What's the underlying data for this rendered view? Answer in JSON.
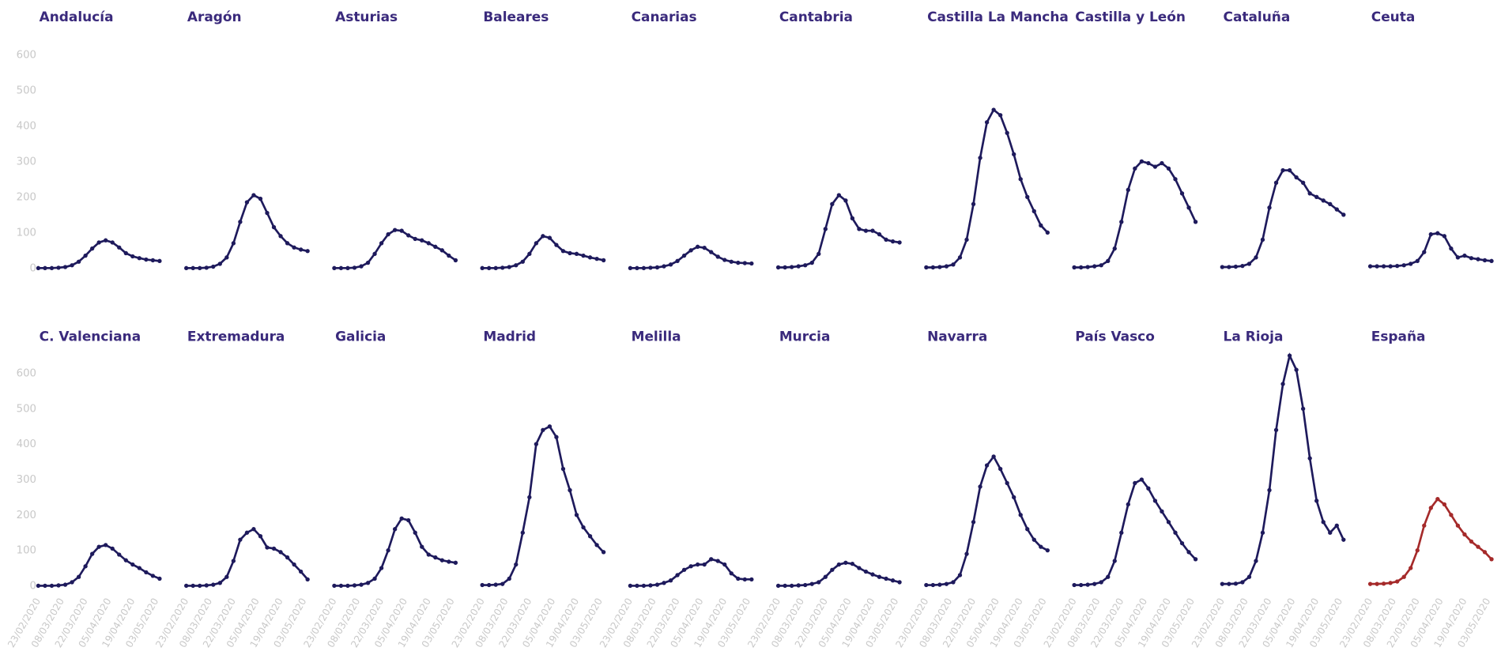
{
  "chart_data": [
    {
      "type": "line",
      "title": "Andalucía",
      "color": "#1e1a5c",
      "xlim": [
        "23/02/2020",
        "08/05/2020"
      ],
      "ylim": [
        0,
        600
      ],
      "yticks": [
        0,
        100,
        200,
        300,
        400,
        500,
        600
      ],
      "x": [
        "23/02/2020",
        "27/02/2020",
        "02/03/2020",
        "06/03/2020",
        "10/03/2020",
        "14/03/2020",
        "18/03/2020",
        "22/03/2020",
        "26/03/2020",
        "30/03/2020",
        "03/04/2020",
        "07/04/2020",
        "11/04/2020",
        "15/04/2020",
        "19/04/2020",
        "23/04/2020",
        "27/04/2020",
        "01/05/2020",
        "05/05/2020"
      ],
      "values": [
        0,
        0,
        0,
        1,
        3,
        8,
        18,
        35,
        55,
        72,
        78,
        72,
        58,
        42,
        33,
        28,
        24,
        22,
        20
      ]
    },
    {
      "type": "line",
      "title": "Aragón",
      "color": "#1e1a5c",
      "xlim": [
        "23/02/2020",
        "08/05/2020"
      ],
      "ylim": [
        0,
        600
      ],
      "x": [
        "23/02/2020",
        "27/02/2020",
        "02/03/2020",
        "06/03/2020",
        "10/03/2020",
        "14/03/2020",
        "18/03/2020",
        "22/03/2020",
        "26/03/2020",
        "30/03/2020",
        "03/04/2020",
        "07/04/2020",
        "11/04/2020",
        "15/04/2020",
        "19/04/2020",
        "23/04/2020",
        "27/04/2020",
        "01/05/2020",
        "05/05/2020"
      ],
      "values": [
        0,
        0,
        0,
        1,
        4,
        12,
        30,
        70,
        130,
        185,
        205,
        195,
        155,
        115,
        90,
        70,
        58,
        52,
        48
      ]
    },
    {
      "type": "line",
      "title": "Asturias",
      "color": "#1e1a5c",
      "xlim": [
        "23/02/2020",
        "08/05/2020"
      ],
      "ylim": [
        0,
        600
      ],
      "x": [
        "23/02/2020",
        "27/02/2020",
        "02/03/2020",
        "06/03/2020",
        "10/03/2020",
        "14/03/2020",
        "18/03/2020",
        "22/03/2020",
        "26/03/2020",
        "30/03/2020",
        "03/04/2020",
        "07/04/2020",
        "11/04/2020",
        "15/04/2020",
        "19/04/2020",
        "23/04/2020",
        "27/04/2020",
        "01/05/2020",
        "05/05/2020"
      ],
      "values": [
        0,
        0,
        0,
        1,
        5,
        15,
        40,
        70,
        95,
        107,
        105,
        92,
        82,
        78,
        70,
        60,
        50,
        35,
        22
      ]
    },
    {
      "type": "line",
      "title": "Baleares",
      "color": "#1e1a5c",
      "xlim": [
        "23/02/2020",
        "08/05/2020"
      ],
      "ylim": [
        0,
        600
      ],
      "x": [
        "23/02/2020",
        "27/02/2020",
        "02/03/2020",
        "06/03/2020",
        "10/03/2020",
        "14/03/2020",
        "18/03/2020",
        "22/03/2020",
        "26/03/2020",
        "30/03/2020",
        "03/04/2020",
        "07/04/2020",
        "11/04/2020",
        "15/04/2020",
        "19/04/2020",
        "23/04/2020",
        "27/04/2020",
        "01/05/2020",
        "05/05/2020"
      ],
      "values": [
        0,
        0,
        0,
        1,
        3,
        8,
        18,
        40,
        70,
        90,
        85,
        65,
        48,
        42,
        40,
        35,
        30,
        26,
        22
      ]
    },
    {
      "type": "line",
      "title": "Canarias",
      "color": "#1e1a5c",
      "xlim": [
        "23/02/2020",
        "08/05/2020"
      ],
      "ylim": [
        0,
        600
      ],
      "x": [
        "23/02/2020",
        "27/02/2020",
        "02/03/2020",
        "06/03/2020",
        "10/03/2020",
        "14/03/2020",
        "18/03/2020",
        "22/03/2020",
        "26/03/2020",
        "30/03/2020",
        "03/04/2020",
        "07/04/2020",
        "11/04/2020",
        "15/04/2020",
        "19/04/2020",
        "23/04/2020",
        "27/04/2020",
        "01/05/2020",
        "05/05/2020"
      ],
      "values": [
        0,
        0,
        0,
        1,
        2,
        5,
        10,
        20,
        35,
        50,
        60,
        57,
        45,
        32,
        23,
        18,
        15,
        14,
        13
      ]
    },
    {
      "type": "line",
      "title": "Cantabria",
      "color": "#1e1a5c",
      "xlim": [
        "23/02/2020",
        "08/05/2020"
      ],
      "ylim": [
        0,
        600
      ],
      "x": [
        "23/02/2020",
        "27/02/2020",
        "02/03/2020",
        "06/03/2020",
        "10/03/2020",
        "14/03/2020",
        "18/03/2020",
        "22/03/2020",
        "26/03/2020",
        "30/03/2020",
        "03/04/2020",
        "07/04/2020",
        "11/04/2020",
        "15/04/2020",
        "19/04/2020",
        "23/04/2020",
        "27/04/2020",
        "01/05/2020",
        "05/05/2020"
      ],
      "values": [
        2,
        2,
        3,
        5,
        8,
        15,
        40,
        110,
        180,
        205,
        190,
        140,
        110,
        105,
        105,
        95,
        80,
        75,
        72
      ]
    },
    {
      "type": "line",
      "title": "Castilla La Mancha",
      "color": "#1e1a5c",
      "xlim": [
        "23/02/2020",
        "08/05/2020"
      ],
      "ylim": [
        0,
        600
      ],
      "x": [
        "23/02/2020",
        "27/02/2020",
        "02/03/2020",
        "06/03/2020",
        "10/03/2020",
        "14/03/2020",
        "18/03/2020",
        "22/03/2020",
        "26/03/2020",
        "30/03/2020",
        "03/04/2020",
        "07/04/2020",
        "11/04/2020",
        "15/04/2020",
        "19/04/2020",
        "23/04/2020",
        "27/04/2020",
        "01/05/2020",
        "05/05/2020"
      ],
      "values": [
        2,
        2,
        3,
        5,
        10,
        30,
        80,
        180,
        310,
        410,
        445,
        430,
        380,
        320,
        250,
        200,
        160,
        120,
        100
      ]
    },
    {
      "type": "line",
      "title": "Castilla y León",
      "color": "#1e1a5c",
      "xlim": [
        "23/02/2020",
        "08/05/2020"
      ],
      "ylim": [
        0,
        600
      ],
      "x": [
        "23/02/2020",
        "27/02/2020",
        "02/03/2020",
        "06/03/2020",
        "10/03/2020",
        "14/03/2020",
        "18/03/2020",
        "22/03/2020",
        "26/03/2020",
        "30/03/2020",
        "03/04/2020",
        "07/04/2020",
        "11/04/2020",
        "15/04/2020",
        "19/04/2020",
        "23/04/2020",
        "27/04/2020",
        "01/05/2020",
        "05/05/2020"
      ],
      "values": [
        2,
        2,
        3,
        5,
        8,
        20,
        55,
        130,
        220,
        280,
        300,
        295,
        285,
        295,
        280,
        250,
        210,
        170,
        130
      ]
    },
    {
      "type": "line",
      "title": "Cataluña",
      "color": "#1e1a5c",
      "xlim": [
        "23/02/2020",
        "08/05/2020"
      ],
      "ylim": [
        0,
        600
      ],
      "x": [
        "23/02/2020",
        "27/02/2020",
        "02/03/2020",
        "06/03/2020",
        "10/03/2020",
        "14/03/2020",
        "18/03/2020",
        "22/03/2020",
        "26/03/2020",
        "30/03/2020",
        "03/04/2020",
        "07/04/2020",
        "11/04/2020",
        "15/04/2020",
        "19/04/2020",
        "23/04/2020",
        "27/04/2020",
        "01/05/2020",
        "05/05/2020"
      ],
      "values": [
        3,
        3,
        4,
        6,
        12,
        30,
        80,
        170,
        240,
        275,
        275,
        255,
        240,
        210,
        200,
        190,
        180,
        165,
        150
      ]
    },
    {
      "type": "line",
      "title": "Ceuta",
      "color": "#1e1a5c",
      "xlim": [
        "23/02/2020",
        "08/05/2020"
      ],
      "ylim": [
        0,
        600
      ],
      "x": [
        "23/02/2020",
        "27/02/2020",
        "02/03/2020",
        "06/03/2020",
        "10/03/2020",
        "14/03/2020",
        "18/03/2020",
        "22/03/2020",
        "26/03/2020",
        "30/03/2020",
        "03/04/2020",
        "07/04/2020",
        "11/04/2020",
        "15/04/2020",
        "19/04/2020",
        "23/04/2020",
        "27/04/2020",
        "01/05/2020",
        "05/05/2020"
      ],
      "values": [
        5,
        5,
        5,
        5,
        6,
        8,
        12,
        20,
        45,
        95,
        98,
        90,
        55,
        30,
        35,
        28,
        25,
        22,
        20
      ]
    },
    {
      "type": "line",
      "title": "C. Valenciana",
      "color": "#1e1a5c",
      "xlim": [
        "23/02/2020",
        "08/05/2020"
      ],
      "ylim": [
        0,
        600
      ],
      "yticks": [
        0,
        100,
        200,
        300,
        400,
        500,
        600
      ],
      "xticks": [
        "23/02/2020",
        "08/03/2020",
        "22/03/2020",
        "05/04/2020",
        "19/04/2020",
        "03/05/2020"
      ],
      "x": [
        "23/02/2020",
        "27/02/2020",
        "02/03/2020",
        "06/03/2020",
        "10/03/2020",
        "14/03/2020",
        "18/03/2020",
        "22/03/2020",
        "26/03/2020",
        "30/03/2020",
        "03/04/2020",
        "07/04/2020",
        "11/04/2020",
        "15/04/2020",
        "19/04/2020",
        "23/04/2020",
        "27/04/2020",
        "01/05/2020",
        "05/05/2020"
      ],
      "values": [
        0,
        0,
        0,
        1,
        3,
        10,
        25,
        55,
        90,
        110,
        115,
        105,
        88,
        72,
        60,
        50,
        38,
        28,
        20
      ]
    },
    {
      "type": "line",
      "title": "Extremadura",
      "color": "#1e1a5c",
      "xlim": [
        "23/02/2020",
        "08/05/2020"
      ],
      "ylim": [
        0,
        600
      ],
      "xticks": [
        "23/02/2020",
        "08/03/2020",
        "22/03/2020",
        "05/04/2020",
        "19/04/2020",
        "03/05/2020"
      ],
      "x": [
        "23/02/2020",
        "27/02/2020",
        "02/03/2020",
        "06/03/2020",
        "10/03/2020",
        "14/03/2020",
        "18/03/2020",
        "22/03/2020",
        "26/03/2020",
        "30/03/2020",
        "03/04/2020",
        "07/04/2020",
        "11/04/2020",
        "15/04/2020",
        "19/04/2020",
        "23/04/2020",
        "27/04/2020",
        "01/05/2020",
        "05/05/2020"
      ],
      "values": [
        0,
        0,
        0,
        1,
        3,
        8,
        25,
        70,
        130,
        150,
        160,
        140,
        108,
        105,
        95,
        80,
        60,
        40,
        18
      ]
    },
    {
      "type": "line",
      "title": "Galicia",
      "color": "#1e1a5c",
      "xlim": [
        "23/02/2020",
        "08/05/2020"
      ],
      "ylim": [
        0,
        600
      ],
      "xticks": [
        "23/02/2020",
        "08/03/2020",
        "22/03/2020",
        "05/04/2020",
        "19/04/2020",
        "03/05/2020"
      ],
      "x": [
        "23/02/2020",
        "27/02/2020",
        "02/03/2020",
        "06/03/2020",
        "10/03/2020",
        "14/03/2020",
        "18/03/2020",
        "22/03/2020",
        "26/03/2020",
        "30/03/2020",
        "03/04/2020",
        "07/04/2020",
        "11/04/2020",
        "15/04/2020",
        "19/04/2020",
        "23/04/2020",
        "27/04/2020",
        "01/05/2020",
        "05/05/2020"
      ],
      "values": [
        0,
        0,
        0,
        1,
        3,
        8,
        20,
        50,
        100,
        160,
        190,
        185,
        150,
        110,
        88,
        80,
        72,
        68,
        65
      ]
    },
    {
      "type": "line",
      "title": "Madrid",
      "color": "#1e1a5c",
      "xlim": [
        "23/02/2020",
        "08/05/2020"
      ],
      "ylim": [
        0,
        600
      ],
      "xticks": [
        "23/02/2020",
        "08/03/2020",
        "22/03/2020",
        "05/04/2020",
        "19/04/2020",
        "03/05/2020"
      ],
      "x": [
        "23/02/2020",
        "27/02/2020",
        "02/03/2020",
        "06/03/2020",
        "10/03/2020",
        "14/03/2020",
        "18/03/2020",
        "22/03/2020",
        "26/03/2020",
        "30/03/2020",
        "03/04/2020",
        "07/04/2020",
        "11/04/2020",
        "15/04/2020",
        "19/04/2020",
        "23/04/2020",
        "27/04/2020",
        "01/05/2020",
        "05/05/2020"
      ],
      "values": [
        2,
        2,
        3,
        5,
        20,
        60,
        150,
        250,
        400,
        440,
        450,
        420,
        330,
        270,
        200,
        165,
        140,
        115,
        95
      ]
    },
    {
      "type": "line",
      "title": "Melilla",
      "color": "#1e1a5c",
      "xlim": [
        "23/02/2020",
        "08/05/2020"
      ],
      "ylim": [
        0,
        600
      ],
      "xticks": [
        "23/02/2020",
        "08/03/2020",
        "22/03/2020",
        "05/04/2020",
        "19/04/2020",
        "03/05/2020"
      ],
      "x": [
        "23/02/2020",
        "27/02/2020",
        "02/03/2020",
        "06/03/2020",
        "10/03/2020",
        "14/03/2020",
        "18/03/2020",
        "22/03/2020",
        "26/03/2020",
        "30/03/2020",
        "03/04/2020",
        "07/04/2020",
        "11/04/2020",
        "15/04/2020",
        "19/04/2020",
        "23/04/2020",
        "27/04/2020",
        "01/05/2020",
        "05/05/2020"
      ],
      "values": [
        0,
        0,
        0,
        1,
        3,
        8,
        15,
        30,
        45,
        55,
        60,
        60,
        75,
        70,
        60,
        35,
        20,
        18,
        18
      ]
    },
    {
      "type": "line",
      "title": "Murcia",
      "color": "#1e1a5c",
      "xlim": [
        "23/02/2020",
        "08/05/2020"
      ],
      "ylim": [
        0,
        600
      ],
      "xticks": [
        "23/02/2020",
        "08/03/2020",
        "22/03/2020",
        "05/04/2020",
        "19/04/2020",
        "03/05/2020"
      ],
      "x": [
        "23/02/2020",
        "27/02/2020",
        "02/03/2020",
        "06/03/2020",
        "10/03/2020",
        "14/03/2020",
        "18/03/2020",
        "22/03/2020",
        "26/03/2020",
        "30/03/2020",
        "03/04/2020",
        "07/04/2020",
        "11/04/2020",
        "15/04/2020",
        "19/04/2020",
        "23/04/2020",
        "27/04/2020",
        "01/05/2020",
        "05/05/2020"
      ],
      "values": [
        0,
        0,
        0,
        1,
        2,
        5,
        10,
        25,
        45,
        60,
        65,
        62,
        50,
        40,
        32,
        25,
        20,
        15,
        10
      ]
    },
    {
      "type": "line",
      "title": "Navarra",
      "color": "#1e1a5c",
      "xlim": [
        "23/02/2020",
        "08/05/2020"
      ],
      "ylim": [
        0,
        600
      ],
      "xticks": [
        "23/02/2020",
        "08/03/2020",
        "22/03/2020",
        "05/04/2020",
        "19/04/2020",
        "03/05/2020"
      ],
      "x": [
        "23/02/2020",
        "27/02/2020",
        "02/03/2020",
        "06/03/2020",
        "10/03/2020",
        "14/03/2020",
        "18/03/2020",
        "22/03/2020",
        "26/03/2020",
        "30/03/2020",
        "03/04/2020",
        "07/04/2020",
        "11/04/2020",
        "15/04/2020",
        "19/04/2020",
        "23/04/2020",
        "27/04/2020",
        "01/05/2020",
        "05/05/2020"
      ],
      "values": [
        2,
        2,
        3,
        5,
        10,
        30,
        90,
        180,
        280,
        340,
        365,
        330,
        290,
        250,
        200,
        160,
        130,
        110,
        100
      ]
    },
    {
      "type": "line",
      "title": "País Vasco",
      "color": "#1e1a5c",
      "xlim": [
        "23/02/2020",
        "08/05/2020"
      ],
      "ylim": [
        0,
        600
      ],
      "xticks": [
        "23/02/2020",
        "08/03/2020",
        "22/03/2020",
        "05/04/2020",
        "19/04/2020",
        "03/05/2020"
      ],
      "x": [
        "23/02/2020",
        "27/02/2020",
        "02/03/2020",
        "06/03/2020",
        "10/03/2020",
        "14/03/2020",
        "18/03/2020",
        "22/03/2020",
        "26/03/2020",
        "30/03/2020",
        "03/04/2020",
        "07/04/2020",
        "11/04/2020",
        "15/04/2020",
        "19/04/2020",
        "23/04/2020",
        "27/04/2020",
        "01/05/2020",
        "05/05/2020"
      ],
      "values": [
        2,
        2,
        3,
        5,
        10,
        25,
        70,
        150,
        230,
        290,
        300,
        275,
        240,
        210,
        180,
        150,
        120,
        95,
        75
      ]
    },
    {
      "type": "line",
      "title": "La Rioja",
      "color": "#1e1a5c",
      "xlim": [
        "23/02/2020",
        "08/05/2020"
      ],
      "ylim": [
        0,
        600
      ],
      "xticks": [
        "23/02/2020",
        "08/03/2020",
        "22/03/2020",
        "05/04/2020",
        "19/04/2020",
        "03/05/2020"
      ],
      "x": [
        "23/02/2020",
        "27/02/2020",
        "02/03/2020",
        "06/03/2020",
        "10/03/2020",
        "14/03/2020",
        "18/03/2020",
        "22/03/2020",
        "26/03/2020",
        "30/03/2020",
        "03/04/2020",
        "07/04/2020",
        "11/04/2020",
        "15/04/2020",
        "19/04/2020",
        "23/04/2020",
        "27/04/2020",
        "01/05/2020",
        "05/05/2020"
      ],
      "values": [
        5,
        5,
        6,
        10,
        25,
        70,
        150,
        270,
        440,
        570,
        650,
        610,
        500,
        360,
        240,
        180,
        150,
        170,
        130
      ]
    },
    {
      "type": "line",
      "title": "España",
      "title_color": "#a52a2a",
      "color": "#a52a2a",
      "xlim": [
        "23/02/2020",
        "08/05/2020"
      ],
      "ylim": [
        0,
        600
      ],
      "xticks": [
        "23/02/2020",
        "08/03/2020",
        "22/03/2020",
        "05/04/2020",
        "19/04/2020",
        "03/05/2020"
      ],
      "x": [
        "23/02/2020",
        "27/02/2020",
        "02/03/2020",
        "06/03/2020",
        "10/03/2020",
        "14/03/2020",
        "18/03/2020",
        "22/03/2020",
        "26/03/2020",
        "30/03/2020",
        "03/04/2020",
        "07/04/2020",
        "11/04/2020",
        "15/04/2020",
        "19/04/2020",
        "23/04/2020",
        "27/04/2020",
        "01/05/2020",
        "05/05/2020"
      ],
      "values": [
        5,
        5,
        6,
        8,
        12,
        25,
        50,
        100,
        170,
        220,
        245,
        230,
        200,
        170,
        145,
        125,
        110,
        95,
        75
      ]
    }
  ]
}
